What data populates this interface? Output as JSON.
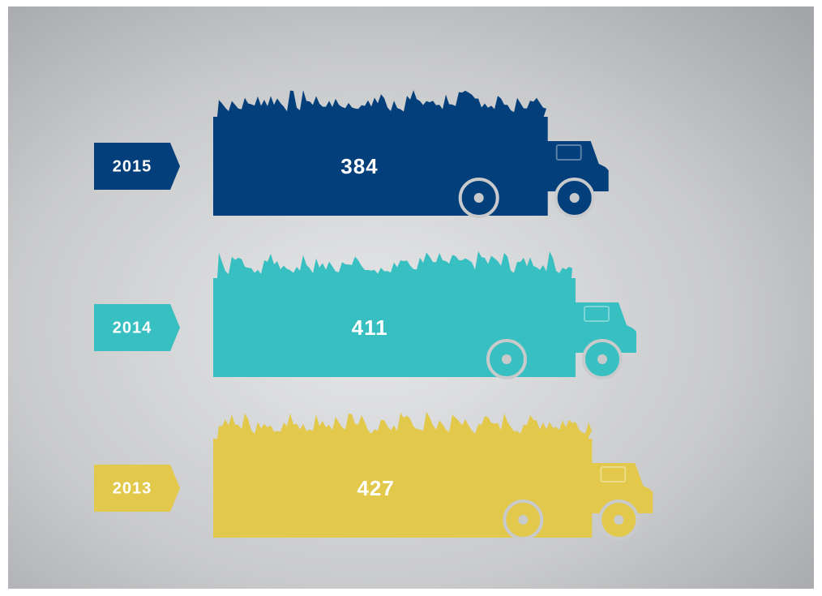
{
  "chart_data": {
    "type": "bar",
    "orientation": "horizontal",
    "categories": [
      "2015",
      "2014",
      "2013"
    ],
    "values": [
      384,
      411,
      427
    ],
    "colors": [
      "#033f7a",
      "#38bfc1",
      "#e2c84b"
    ]
  }
}
